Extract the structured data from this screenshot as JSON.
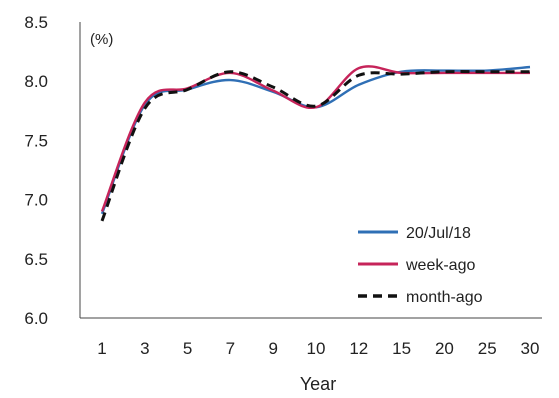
{
  "chart_data": {
    "type": "line",
    "title": "",
    "xlabel": "Year",
    "ylabel": "",
    "unit_label": "(%)",
    "categories": [
      "1",
      "3",
      "5",
      "7",
      "9",
      "10",
      "12",
      "15",
      "20",
      "25",
      "30"
    ],
    "ylim": [
      6.0,
      8.5
    ],
    "yticks": [
      "6.0",
      "6.5",
      "7.0",
      "7.5",
      "8.0",
      "8.5"
    ],
    "grid": false,
    "legend_position": "bottom-right",
    "series": [
      {
        "name": "20/Jul/18",
        "color": "#2f6fb5",
        "dash": "solid",
        "values": [
          6.88,
          7.8,
          7.93,
          8.01,
          7.91,
          7.78,
          7.97,
          8.08,
          8.09,
          8.09,
          8.12
        ]
      },
      {
        "name": "week-ago",
        "color": "#c6245a",
        "dash": "solid",
        "values": [
          6.9,
          7.82,
          7.94,
          8.07,
          7.92,
          7.78,
          8.11,
          8.07,
          8.07,
          8.07,
          8.07
        ]
      },
      {
        "name": "month-ago",
        "color": "#111111",
        "dash": "dashed",
        "values": [
          6.82,
          7.77,
          7.93,
          8.08,
          7.95,
          7.79,
          8.05,
          8.06,
          8.08,
          8.08,
          8.08
        ]
      }
    ]
  }
}
